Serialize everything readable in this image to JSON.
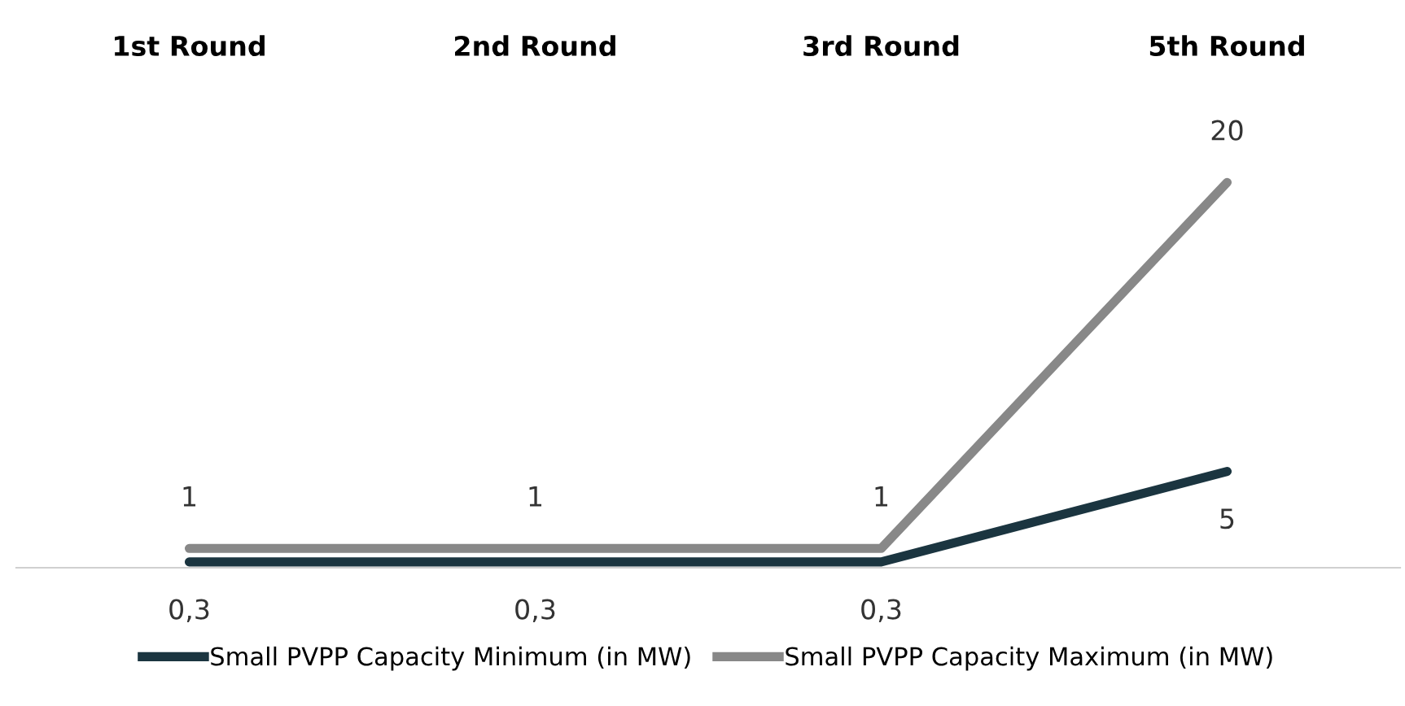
{
  "chart_data": {
    "type": "line",
    "categories": [
      "1st Round",
      "2nd Round",
      "3rd Round",
      "5th Round"
    ],
    "series": [
      {
        "name": "Small PVPP Capacity Minimum (in MW)",
        "color": "#1b3540",
        "values": [
          0.3,
          0.3,
          0.3,
          5
        ],
        "value_labels": [
          "0,3",
          "0,3",
          "0,3",
          "5"
        ]
      },
      {
        "name": "Small PVPP Capacity Maximum (in MW)",
        "color": "#888888",
        "values": [
          1,
          1,
          1,
          20
        ],
        "value_labels": [
          "1",
          "1",
          "1",
          "20"
        ]
      }
    ],
    "tick_labels": "x",
    "legend": "bottom",
    "grid": false,
    "marker": "none",
    "line_style": "solid"
  }
}
